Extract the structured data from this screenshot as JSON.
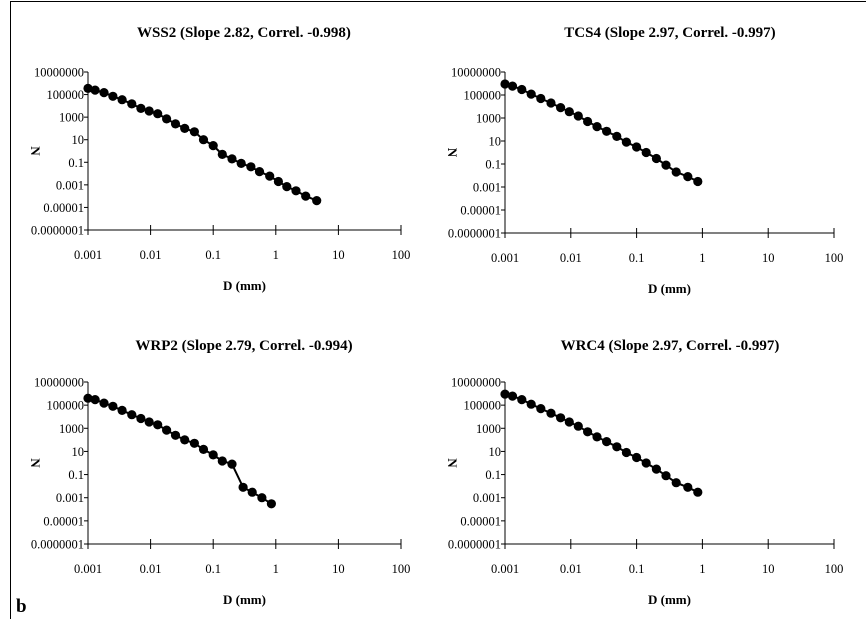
{
  "panel_label": "b",
  "chart_data": [
    {
      "type": "scatter",
      "title": "WSS2 (Slope 2.82, Correl. -0.998)",
      "xlabel": "D (mm)",
      "ylabel": "N",
      "xscale": "log",
      "yscale": "log",
      "xlim": [
        0.001,
        100
      ],
      "ylim": [
        1e-07,
        10000000
      ],
      "x_ticks": [
        "0.001",
        "0.01",
        "0.1",
        "1",
        "10",
        "100"
      ],
      "y_ticks": [
        "0.0000001",
        "0.00001",
        "0.001",
        "0.1",
        "10",
        "1000",
        "100000",
        "10000000"
      ],
      "grid": false,
      "legend": "none",
      "marker_color": "#000000",
      "series": [
        {
          "x": [
            0.001,
            0.0013,
            0.0018,
            0.0025,
            0.0035,
            0.005,
            0.007,
            0.0095,
            0.013,
            0.018,
            0.025,
            0.035,
            0.05,
            0.07,
            0.1,
            0.14,
            0.2,
            0.28,
            0.4,
            0.55,
            0.8,
            1.1,
            1.5,
            2.1,
            3,
            4.5
          ],
          "y": [
            350000,
            250000,
            150000,
            70000,
            35000,
            15000,
            6000,
            3500,
            2000,
            700,
            250,
            100,
            50,
            10,
            3,
            0.5,
            0.2,
            0.08,
            0.04,
            0.015,
            0.006,
            0.002,
            0.0007,
            0.0003,
            0.0001,
            4e-05
          ]
        }
      ]
    },
    {
      "type": "scatter",
      "title": "TCS4 (Slope 2.97, Correl. -0.997)",
      "xlabel": "D (mm)",
      "ylabel": "N",
      "xscale": "log",
      "yscale": "log",
      "xlim": [
        0.001,
        100
      ],
      "ylim": [
        1e-07,
        10000000
      ],
      "x_ticks": [
        "0.001",
        "0.01",
        "0.1",
        "1",
        "10",
        "100"
      ],
      "y_ticks": [
        "0.0000001",
        "0.00001",
        "0.001",
        "0.1",
        "10",
        "1000",
        "100000",
        "10000000"
      ],
      "grid": false,
      "legend": "none",
      "marker_color": "#000000",
      "series": [
        {
          "x": [
            0.001,
            0.0013,
            0.0018,
            0.0025,
            0.0035,
            0.005,
            0.007,
            0.0095,
            0.013,
            0.018,
            0.025,
            0.035,
            0.05,
            0.07,
            0.1,
            0.14,
            0.2,
            0.28,
            0.4,
            0.6,
            0.85
          ],
          "y": [
            900000,
            600000,
            300000,
            120000,
            50000,
            20000,
            8000,
            3500,
            1500,
            500,
            180,
            70,
            25,
            8,
            3,
            1,
            0.3,
            0.08,
            0.02,
            0.008,
            0.003
          ]
        }
      ]
    },
    {
      "type": "scatter",
      "title": "WRP2 (Slope 2.79, Correl. -0.994)",
      "xlabel": "D (mm)",
      "ylabel": "N",
      "xscale": "log",
      "yscale": "log",
      "xlim": [
        0.001,
        100
      ],
      "ylim": [
        1e-07,
        10000000
      ],
      "x_ticks": [
        "0.001",
        "0.01",
        "0.1",
        "1",
        "10",
        "100"
      ],
      "y_ticks": [
        "0.0000001",
        "0.00001",
        "0.001",
        "0.1",
        "10",
        "1000",
        "100000",
        "10000000"
      ],
      "grid": false,
      "legend": "none",
      "marker_color": "#000000",
      "series": [
        {
          "x": [
            0.001,
            0.0013,
            0.0018,
            0.0025,
            0.0035,
            0.005,
            0.007,
            0.0095,
            0.013,
            0.018,
            0.025,
            0.035,
            0.05,
            0.07,
            0.1,
            0.14,
            0.2,
            0.3,
            0.42,
            0.6,
            0.85
          ],
          "y": [
            400000,
            300000,
            150000,
            80000,
            35000,
            15000,
            7000,
            3500,
            2000,
            700,
            250,
            100,
            50,
            15,
            5,
            1.5,
            0.8,
            0.008,
            0.003,
            0.001,
            0.0003
          ]
        }
      ]
    },
    {
      "type": "scatter",
      "title": "WRC4 (Slope 2.97, Correl. -0.997)",
      "xlabel": "D (mm)",
      "ylabel": "N",
      "xscale": "log",
      "yscale": "log",
      "xlim": [
        0.001,
        100
      ],
      "ylim": [
        1e-07,
        10000000
      ],
      "x_ticks": [
        "0.001",
        "0.01",
        "0.1",
        "1",
        "10",
        "100"
      ],
      "y_ticks": [
        "0.0000001",
        "0.00001",
        "0.001",
        "0.1",
        "10",
        "1000",
        "100000",
        "10000000"
      ],
      "grid": false,
      "legend": "none",
      "marker_color": "#000000",
      "series": [
        {
          "x": [
            0.001,
            0.0013,
            0.0018,
            0.0025,
            0.0035,
            0.005,
            0.007,
            0.0095,
            0.013,
            0.018,
            0.025,
            0.035,
            0.05,
            0.07,
            0.1,
            0.14,
            0.2,
            0.28,
            0.4,
            0.6,
            0.85
          ],
          "y": [
            900000,
            600000,
            300000,
            120000,
            50000,
            20000,
            8000,
            3500,
            1500,
            500,
            180,
            70,
            25,
            8,
            3,
            1,
            0.3,
            0.08,
            0.02,
            0.008,
            0.003
          ]
        }
      ]
    }
  ]
}
